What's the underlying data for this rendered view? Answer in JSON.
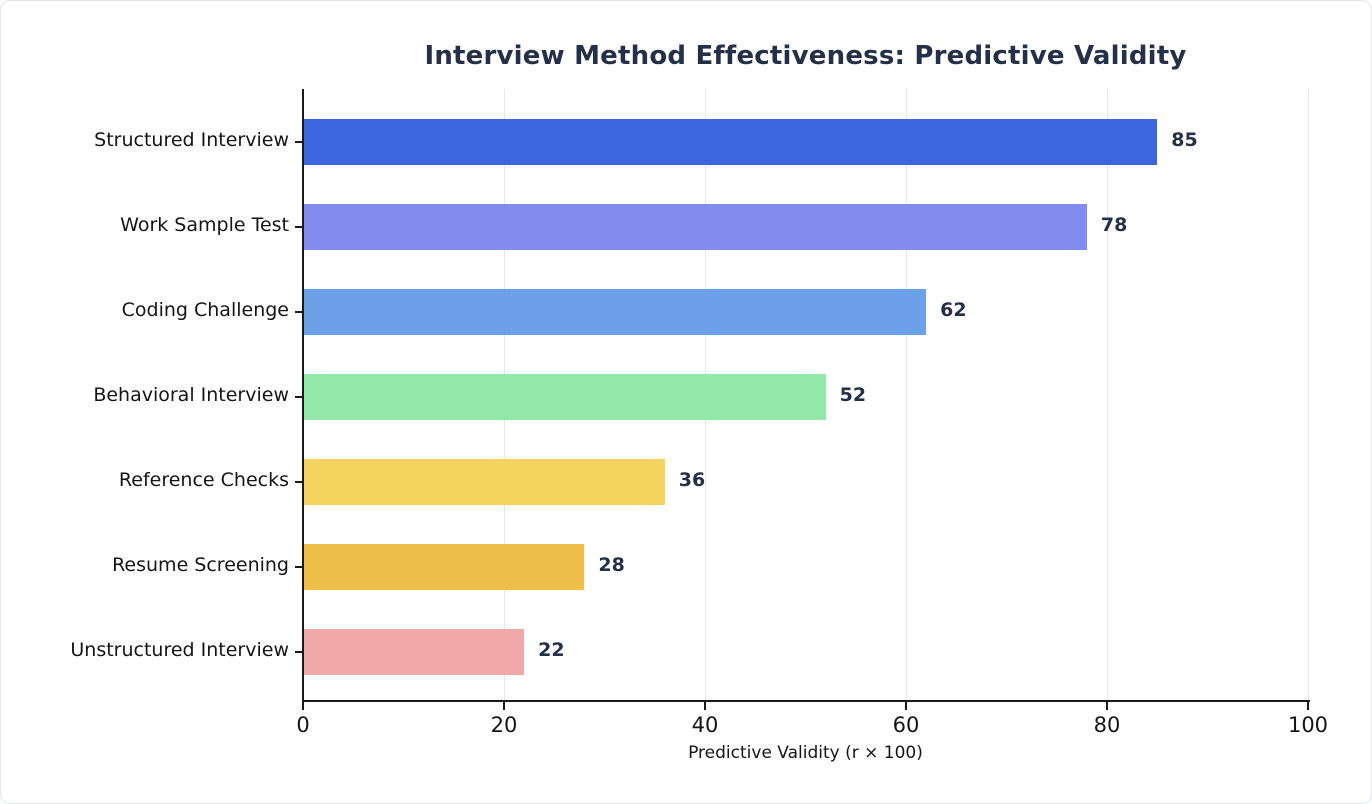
{
  "chart_data": {
    "type": "bar",
    "orientation": "horizontal",
    "title": "Interview Method Effectiveness: Predictive Validity",
    "xlabel": "Predictive Validity (r × 100)",
    "categories": [
      "Structured Interview",
      "Work Sample Test",
      "Coding Challenge",
      "Behavioral Interview",
      "Reference Checks",
      "Resume Screening",
      "Unstructured Interview"
    ],
    "values": [
      85,
      78,
      62,
      52,
      36,
      28,
      22
    ],
    "bar_colors": [
      "#3B66DD",
      "#828CEE",
      "#6CA0E8",
      "#93E8A9",
      "#F5D35E",
      "#F0BF4A",
      "#EFA8A5"
    ],
    "xlim": [
      0,
      100
    ],
    "xticks": [
      0,
      20,
      40,
      60,
      80,
      100
    ],
    "grid": true,
    "legend": "none",
    "colors": {
      "title": "#243047",
      "value_label": "#243047",
      "axis_text": "#151515",
      "gridline": "#e7e7e7",
      "spine": "#1a1a1a",
      "background": "#ffffff"
    }
  }
}
